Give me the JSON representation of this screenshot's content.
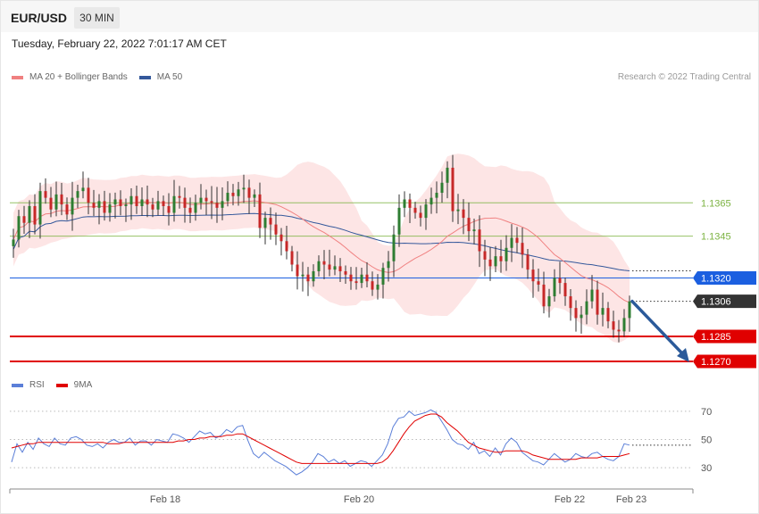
{
  "header": {
    "symbol": "EUR/USD",
    "timeframe": "30 MIN",
    "datetime": "Tuesday, February 22, 2022 7:01:17 AM CET"
  },
  "legend": {
    "ma20_label": "MA 20 + Bollinger Bands",
    "ma50_label": "MA 50",
    "credit": "Research © 2022 Trading Central",
    "rsi_label": "RSI",
    "rsi_ma_label": "9MA"
  },
  "colors": {
    "up": "#2e7d32",
    "down": "#c62828",
    "ma20": "#f08080",
    "band": "#fde0e0",
    "ma50": "#34589b",
    "pivot": "#1b5fe0",
    "support": "#e00000",
    "resistance": "#7cb342",
    "last": "#333333",
    "rsi": "#5b7fd8",
    "rsi_ma": "#e00000"
  },
  "chart_data": [
    {
      "type": "candlestick",
      "title": "EUR/USD 30 MIN",
      "x_labels": [
        "Feb 18",
        "Feb 20",
        "Feb 22",
        "Feb 23"
      ],
      "ylim": [
        1.1262,
        1.1433
      ],
      "series": [
        {
          "name": "MA 20 + Bollinger Bands"
        },
        {
          "name": "MA 50"
        }
      ],
      "last_price": 1.1306,
      "levels": [
        {
          "value": 1.1365,
          "label": "1.1365",
          "kind": "resistance"
        },
        {
          "value": 1.1345,
          "label": "1.1345",
          "kind": "resistance"
        },
        {
          "value": 1.132,
          "label": "1.1320",
          "kind": "pivot"
        },
        {
          "value": 1.1306,
          "label": "1.1306",
          "kind": "last"
        },
        {
          "value": 1.1285,
          "label": "1.1285",
          "kind": "support"
        },
        {
          "value": 1.127,
          "label": "1.1270",
          "kind": "support"
        }
      ],
      "forecast_arrow": {
        "from": 1.1306,
        "to": 1.127
      },
      "price_path": [
        1.1343,
        1.1357,
        1.1353,
        1.1363,
        1.1352,
        1.1372,
        1.1368,
        1.1361,
        1.137,
        1.1364,
        1.1358,
        1.1368,
        1.1372,
        1.1374,
        1.1365,
        1.1362,
        1.1366,
        1.1359,
        1.1364,
        1.1367,
        1.1363,
        1.1364,
        1.1369,
        1.1363,
        1.1367,
        1.1364,
        1.1361,
        1.1366,
        1.1363,
        1.1359,
        1.1369,
        1.1368,
        1.1362,
        1.1359,
        1.1365,
        1.1368,
        1.1366,
        1.1365,
        1.1362,
        1.1366,
        1.1371,
        1.1369,
        1.1373,
        1.1374,
        1.1368,
        1.137,
        1.135,
        1.1356,
        1.1352,
        1.1346,
        1.1342,
        1.1336,
        1.1328,
        1.1321,
        1.1322,
        1.1318,
        1.1324,
        1.133,
        1.1328,
        1.1325,
        1.1327,
        1.1324,
        1.1322,
        1.1318,
        1.1317,
        1.1322,
        1.1318,
        1.1313,
        1.1316,
        1.1326,
        1.133,
        1.1346,
        1.1362,
        1.1367,
        1.1362,
        1.1359,
        1.1356,
        1.1364,
        1.1368,
        1.1371,
        1.1377,
        1.1386,
        1.136,
        1.1361,
        1.1356,
        1.1348,
        1.1349,
        1.1336,
        1.1331,
        1.1327,
        1.1333,
        1.133,
        1.1338,
        1.1344,
        1.1341,
        1.1334,
        1.1325,
        1.1318,
        1.1316,
        1.1303,
        1.1309,
        1.132,
        1.1317,
        1.1309,
        1.1302,
        1.1296,
        1.1298,
        1.1306,
        1.1313,
        1.1298,
        1.1302,
        1.1294,
        1.1289,
        1.1288,
        1.1296,
        1.1306
      ]
    },
    {
      "type": "line",
      "title": "RSI",
      "series": [
        {
          "name": "RSI"
        },
        {
          "name": "9MA"
        }
      ],
      "ylim": [
        20,
        80
      ],
      "y_ticks": [
        70,
        50,
        30
      ],
      "rsi_values": [
        34,
        47,
        41,
        48,
        43,
        51,
        47,
        45,
        51,
        47,
        46,
        51,
        52,
        50,
        46,
        45,
        47,
        44,
        48,
        50,
        48,
        48,
        51,
        46,
        49,
        49,
        46,
        50,
        49,
        48,
        54,
        53,
        51,
        48,
        52,
        56,
        54,
        55,
        51,
        53,
        57,
        55,
        59,
        60,
        49,
        40,
        37,
        41,
        38,
        35,
        33,
        31,
        28,
        25,
        27,
        30,
        34,
        40,
        38,
        34,
        36,
        33,
        35,
        31,
        33,
        35,
        34,
        31,
        35,
        39,
        47,
        59,
        65,
        66,
        70,
        67,
        68,
        69,
        71,
        69,
        63,
        57,
        50,
        47,
        46,
        43,
        48,
        40,
        42,
        38,
        44,
        39,
        47,
        51,
        48,
        41,
        38,
        35,
        34,
        32,
        36,
        40,
        37,
        34,
        36,
        40,
        38,
        37,
        40,
        41,
        38,
        36,
        35,
        38,
        47,
        46
      ],
      "rsi_ma_values": [
        44,
        45,
        46,
        47,
        47,
        48,
        48,
        48,
        48,
        48,
        48,
        48,
        48,
        48,
        48,
        48,
        48,
        48,
        47,
        47,
        47,
        48,
        48,
        48,
        48,
        48,
        48,
        48,
        48,
        48,
        48,
        49,
        49,
        50,
        50,
        51,
        51,
        52,
        52,
        52,
        53,
        53,
        54,
        54,
        52,
        50,
        48,
        46,
        44,
        42,
        40,
        38,
        36,
        34,
        33,
        33,
        33,
        33,
        33,
        33,
        33,
        33,
        33,
        33,
        33,
        33,
        33,
        33,
        33,
        34,
        37,
        42,
        48,
        54,
        59,
        63,
        65,
        67,
        68,
        68,
        66,
        62,
        59,
        56,
        52,
        48,
        46,
        44,
        43,
        42,
        41,
        41,
        42,
        42,
        42,
        42,
        41,
        39,
        38,
        37,
        36,
        36,
        36,
        36,
        36,
        36,
        37,
        37,
        37,
        37,
        38,
        38,
        38,
        38,
        39,
        40
      ]
    }
  ]
}
